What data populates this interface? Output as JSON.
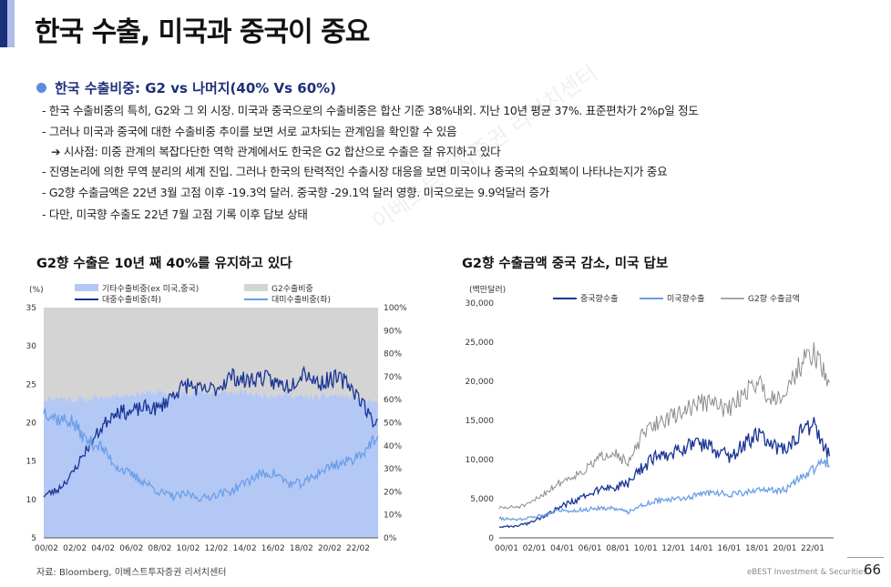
{
  "page": {
    "title": "한국 수출, 미국과 중국이 중요",
    "bullet_title": "한국 수출비중: G2 vs 나머지(40% Vs 60%)",
    "lines": [
      "- 한국 수출비중의 특히, G2와 그 외 시장. 미국과 중국으로의 수출비중은 합산 기준 38%내외. 지난 10년 평균 37%. 표준편차가 2%p일 정도",
      "- 그러나 미국과 중국에 대한 수출비중 추이를 보면 서로 교차되는 관계임을 확인할 수 있음",
      "➔ 시사점: 미중 관계의 복잡다단한 역학 관계에서도 한국은 G2 합산으로 수출은 잘 유지하고 있다",
      "- 진영논리에 의한 무역 분리의 세계 진입. 그러나 한국의 탄력적인 수출시장 대응을 보면 미국이나 중국의 수요회복이 나타나는지가 중요",
      "- G2향 수출금액은 22년 3월 고점 이후 -19.3억 달러. 중국향 -29.1억 달러 영향. 미국으로는 9.9억달러 증가",
      "- 다만, 미국향 수출도 22년 7월 고점 기록 이후 답보 상태"
    ],
    "source": "자료: Bloomberg, 이베스트투자증권 리서치센터",
    "footer_brand": "eBEST Investment & Securities",
    "page_number": "66",
    "watermark": "이베스트투자증권 리서치센터"
  },
  "chart_data": [
    {
      "type": "area",
      "title": "G2향 수출은 10년 째 40%를 유지하고 있다",
      "left_unit": "(%)",
      "left_ylim": [
        5,
        35
      ],
      "left_ticks": [
        "35",
        "30",
        "25",
        "20",
        "15",
        "10",
        "5"
      ],
      "right_ylim": [
        0,
        100
      ],
      "right_ticks": [
        "100%",
        "90%",
        "80%",
        "70%",
        "60%",
        "50%",
        "40%",
        "30%",
        "20%",
        "10%",
        "0%"
      ],
      "x_ticks": [
        "00/02",
        "02/02",
        "04/02",
        "06/02",
        "08/02",
        "10/02",
        "12/02",
        "14/02",
        "16/02",
        "18/02",
        "20/02",
        "22/02"
      ],
      "x_range": [
        2000.08,
        2023.1
      ],
      "legend": [
        "기타수출비중(ex 미국,중국)",
        "G2수출비중",
        "대중수출비중(좌)",
        "대미수출비중(좌)"
      ],
      "colors": {
        "other": "#b3c8f5",
        "g2": "#d4d4d4",
        "china": "#1a3596",
        "us": "#6b9ee8"
      },
      "series": [
        {
          "name": "기타수출비중(ex 미국,중국)",
          "axis": "right",
          "points": [
            [
              2000,
              60
            ],
            [
              2001,
              61
            ],
            [
              2002,
              60
            ],
            [
              2003,
              60
            ],
            [
              2004,
              61
            ],
            [
              2005,
              62
            ],
            [
              2006,
              62
            ],
            [
              2007,
              63
            ],
            [
              2008,
              63
            ],
            [
              2009,
              62
            ],
            [
              2010,
              63
            ],
            [
              2011,
              63
            ],
            [
              2012,
              63
            ],
            [
              2013,
              63
            ],
            [
              2014,
              63
            ],
            [
              2015,
              62
            ],
            [
              2016,
              62
            ],
            [
              2017,
              62
            ],
            [
              2018,
              61
            ],
            [
              2019,
              61
            ],
            [
              2020,
              62
            ],
            [
              2021,
              61
            ],
            [
              2022,
              60
            ],
            [
              2023.1,
              58
            ]
          ]
        },
        {
          "name": "대중수출비중(좌)",
          "axis": "left",
          "points": [
            [
              2000,
              10.5
            ],
            [
              2001,
              11.2
            ],
            [
              2002,
              13.2
            ],
            [
              2003,
              16.5
            ],
            [
              2004,
              19.2
            ],
            [
              2005,
              21.6
            ],
            [
              2006,
              21.3
            ],
            [
              2007,
              22.0
            ],
            [
              2008,
              21.8
            ],
            [
              2009,
              23.8
            ],
            [
              2010,
              25.0
            ],
            [
              2011,
              24.1
            ],
            [
              2012,
              24.5
            ],
            [
              2013,
              26.1
            ],
            [
              2014,
              25.4
            ],
            [
              2015,
              26.0
            ],
            [
              2016,
              25.2
            ],
            [
              2017,
              24.8
            ],
            [
              2018,
              26.8
            ],
            [
              2019,
              25.1
            ],
            [
              2020,
              25.8
            ],
            [
              2021,
              25.3
            ],
            [
              2022,
              22.8
            ],
            [
              2022.6,
              20.5
            ],
            [
              2023.1,
              20.0
            ]
          ]
        },
        {
          "name": "대미수출비중(좌)",
          "axis": "left",
          "points": [
            [
              2000,
              21.8
            ],
            [
              2001,
              20.5
            ],
            [
              2002,
              20.2
            ],
            [
              2003,
              17.7
            ],
            [
              2004,
              16.9
            ],
            [
              2005,
              14.5
            ],
            [
              2006,
              13.3
            ],
            [
              2007,
              12.3
            ],
            [
              2008,
              11.0
            ],
            [
              2009,
              10.4
            ],
            [
              2010,
              10.7
            ],
            [
              2011,
              10.1
            ],
            [
              2012,
              10.7
            ],
            [
              2013,
              11.1
            ],
            [
              2014,
              12.3
            ],
            [
              2015,
              13.3
            ],
            [
              2016,
              13.4
            ],
            [
              2017,
              12.0
            ],
            [
              2018,
              12.1
            ],
            [
              2019,
              13.5
            ],
            [
              2020,
              14.5
            ],
            [
              2021,
              14.9
            ],
            [
              2022,
              16.1
            ],
            [
              2022.6,
              17.3
            ],
            [
              2023.1,
              17.8
            ]
          ]
        }
      ]
    },
    {
      "type": "line",
      "title": "G2향 수출금액 중국 감소, 미국 답보",
      "unit": "(백만달러)",
      "ylim": [
        0,
        30000
      ],
      "y_ticks": [
        "30,000",
        "25,000",
        "20,000",
        "15,000",
        "10,000",
        "5,000",
        "0"
      ],
      "x_ticks": [
        "00/01",
        "02/01",
        "04/01",
        "06/01",
        "08/01",
        "10/01",
        "12/01",
        "14/01",
        "16/01",
        "18/01",
        "20/01",
        "22/01"
      ],
      "x_range": [
        2000.0,
        2023.1
      ],
      "legend": [
        "중국향수출",
        "미국향수출",
        "G2향 수출금액"
      ],
      "colors": {
        "china": "#1a3596",
        "us": "#6b9ee8",
        "g2": "#8c8c8c"
      },
      "series": [
        {
          "name": "G2향 수출금액",
          "points": [
            [
              2000,
              3800
            ],
            [
              2001,
              3900
            ],
            [
              2002,
              4200
            ],
            [
              2003,
              5500
            ],
            [
              2004,
              6800
            ],
            [
              2005,
              7800
            ],
            [
              2006,
              8600
            ],
            [
              2007,
              10200
            ],
            [
              2008,
              11200
            ],
            [
              2009,
              9300
            ],
            [
              2010,
              13100
            ],
            [
              2011,
              14700
            ],
            [
              2012,
              15400
            ],
            [
              2013,
              16300
            ],
            [
              2014,
              17300
            ],
            [
              2015,
              17200
            ],
            [
              2016,
              16300
            ],
            [
              2017,
              18300
            ],
            [
              2018,
              20100
            ],
            [
              2019,
              17800
            ],
            [
              2020,
              18700
            ],
            [
              2021,
              22000
            ],
            [
              2022,
              23800
            ],
            [
              2022.6,
              21500
            ],
            [
              2023.1,
              18800
            ]
          ]
        },
        {
          "name": "중국향수출",
          "points": [
            [
              2000,
              1400
            ],
            [
              2001,
              1500
            ],
            [
              2002,
              1800
            ],
            [
              2003,
              2700
            ],
            [
              2004,
              3700
            ],
            [
              2005,
              4600
            ],
            [
              2006,
              5300
            ],
            [
              2007,
              6100
            ],
            [
              2008,
              6500
            ],
            [
              2009,
              6800
            ],
            [
              2010,
              9000
            ],
            [
              2011,
              10300
            ],
            [
              2012,
              10800
            ],
            [
              2013,
              11700
            ],
            [
              2014,
              12000
            ],
            [
              2015,
              11300
            ],
            [
              2016,
              10400
            ],
            [
              2017,
              11600
            ],
            [
              2018,
              13500
            ],
            [
              2019,
              11600
            ],
            [
              2020,
              11400
            ],
            [
              2021,
              13400
            ],
            [
              2022,
              14300
            ],
            [
              2022.6,
              12000
            ],
            [
              2023.1,
              10300
            ]
          ]
        },
        {
          "name": "미국향수출",
          "points": [
            [
              2000,
              2500
            ],
            [
              2001,
              2300
            ],
            [
              2002,
              2500
            ],
            [
              2003,
              2900
            ],
            [
              2004,
              3500
            ],
            [
              2005,
              3500
            ],
            [
              2006,
              3600
            ],
            [
              2007,
              3800
            ],
            [
              2008,
              3800
            ],
            [
              2009,
              3300
            ],
            [
              2010,
              4200
            ],
            [
              2011,
              4800
            ],
            [
              2012,
              4900
            ],
            [
              2013,
              5000
            ],
            [
              2014,
              5600
            ],
            [
              2015,
              5800
            ],
            [
              2016,
              5600
            ],
            [
              2017,
              5700
            ],
            [
              2018,
              6000
            ],
            [
              2019,
              6100
            ],
            [
              2020,
              6100
            ],
            [
              2021,
              7600
            ],
            [
              2022,
              8800
            ],
            [
              2022.6,
              9700
            ],
            [
              2023.1,
              9600
            ]
          ]
        }
      ]
    }
  ]
}
